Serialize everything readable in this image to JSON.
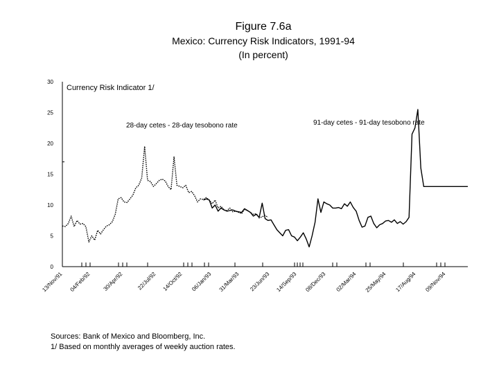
{
  "figure": {
    "title": "Figure 7.6a",
    "subtitle": "Mexico: Currency Risk Indicators, 1991-94",
    "units": "(In percent)"
  },
  "notes": {
    "sources": "Sources: Bank of Mexico and Bloomberg, Inc.",
    "footnote": "1/  Based on monthly averages of weekly auction rates."
  },
  "chart_data": {
    "type": "line",
    "title": "Currency Risk Indicator 1/",
    "ylim": [
      0,
      30
    ],
    "yticks": [
      "0",
      "5",
      "10",
      "15",
      "20",
      "25",
      "30"
    ],
    "xlabels": [
      "13/Nov/91",
      "04/Feb/92",
      "30/Apr/92",
      "22/Jul/92",
      "14/Oct/92",
      "06/Jan/93",
      "31/Mar/93",
      "23/Jun/93",
      "14/Sep/93",
      "08/Dec/93",
      "02/Mar/94",
      "25/May/94",
      "17/Aug/94",
      "09/Nov/94"
    ],
    "series": [
      {
        "name": "28-day cetes - 28-day tesobono rate",
        "style": "dotted",
        "x": [
          0,
          1,
          2,
          3,
          4,
          5,
          6,
          7,
          8,
          9,
          10,
          11,
          12,
          13,
          14,
          15,
          16,
          17,
          18,
          19,
          20,
          21,
          22,
          23,
          24,
          25,
          26,
          27,
          28,
          29,
          30,
          31,
          32,
          33,
          34,
          35,
          36,
          37,
          38,
          39,
          40,
          41,
          42,
          43,
          44,
          45,
          46,
          47,
          48,
          49,
          50,
          51,
          52,
          53,
          54,
          55,
          56,
          57,
          58,
          59,
          60,
          61,
          62,
          63,
          64,
          65,
          66,
          67,
          68,
          69,
          70
        ],
        "y": [
          6.6,
          6.5,
          7.0,
          8.2,
          6.5,
          7.5,
          6.9,
          7.0,
          6.5,
          4.0,
          5.0,
          4.3,
          5.9,
          5.3,
          6.0,
          6.6,
          6.8,
          7.3,
          8.5,
          11.0,
          11.2,
          10.5,
          10.4,
          11.0,
          11.6,
          12.8,
          13.2,
          14.4,
          19.5,
          14.0,
          13.8,
          13.0,
          13.5,
          14.0,
          14.2,
          13.9,
          13.0,
          12.5,
          17.8,
          13.2,
          13.0,
          12.8,
          13.2,
          12.0,
          12.2,
          11.5,
          10.5,
          11.0,
          10.9,
          11.2,
          10.8,
          10.2,
          10.8,
          9.5,
          9.8,
          9.2,
          9.1,
          9.5,
          8.9,
          9.0,
          8.8,
          8.6,
          9.3,
          9.1,
          8.8,
          8.5,
          8.6,
          7.9,
          8.1,
          8.3,
          8.0
        ]
      },
      {
        "name": "91-day cetes - 91-day tesobono rate",
        "style": "solid",
        "x": [
          48,
          49,
          50,
          51,
          52,
          53,
          54,
          55,
          56,
          57,
          58,
          59,
          60,
          61,
          62,
          63,
          64,
          65,
          66,
          67,
          68,
          69,
          70,
          71,
          72,
          73,
          74,
          75,
          76,
          77,
          78,
          79,
          80,
          81,
          82,
          83,
          84,
          85,
          86,
          87,
          88,
          89,
          90,
          91,
          92,
          93,
          94,
          95,
          96,
          97,
          98,
          99,
          100,
          101,
          102,
          103,
          104,
          105,
          106,
          107,
          108,
          109,
          110,
          111,
          112,
          113,
          114,
          115,
          116,
          117,
          118,
          119,
          120,
          121,
          122,
          123,
          124,
          125,
          126,
          127,
          128,
          129,
          130,
          131,
          132,
          133,
          134,
          135,
          136,
          137,
          138
        ],
        "y": [
          10.8,
          11.0,
          10.8,
          9.5,
          10.0,
          9.0,
          9.5,
          9.2,
          9.0,
          9.1,
          9.2,
          9.0,
          8.9,
          8.8,
          9.4,
          9.1,
          8.8,
          8.2,
          8.5,
          8.0,
          10.3,
          7.8,
          7.5,
          7.6,
          6.8,
          6.0,
          5.5,
          5.0,
          5.9,
          6.0,
          5.0,
          4.8,
          4.2,
          4.8,
          5.5,
          4.5,
          3.2,
          5.0,
          7.2,
          11.0,
          8.8,
          10.5,
          10.2,
          10.0,
          9.5,
          9.5,
          9.6,
          9.4,
          10.2,
          9.8,
          10.5,
          9.6,
          9.0,
          7.5,
          6.4,
          6.6,
          8.0,
          8.2,
          7.0,
          6.3,
          6.8,
          7.0,
          7.4,
          7.5,
          7.2,
          7.6,
          7.0,
          7.3,
          6.9,
          7.3,
          8.0,
          21.5,
          22.5,
          25.5,
          16.0,
          13.0,
          13.0,
          13.0,
          13.0,
          13.0,
          13.0,
          13.0,
          13.0,
          13.0,
          13.0,
          13.0,
          13.0,
          13.0,
          13.0,
          13.0,
          13.0
        ]
      }
    ],
    "annotations": {
      "title_label": "Currency Risk Indicator 1/",
      "series1_label": "28-day cetes - 28-day tesobono rate",
      "series2_label": "91-day cetes - 91-day tesobono rate"
    }
  }
}
